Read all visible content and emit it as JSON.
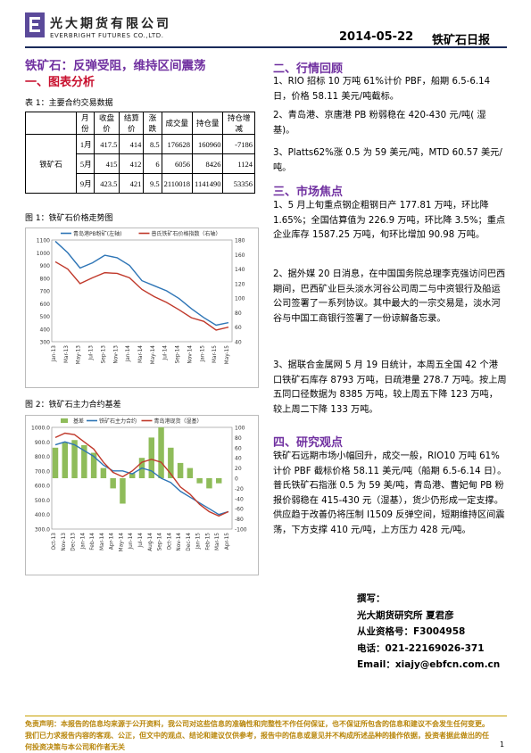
{
  "header": {
    "brand_cn": "光大期货有限公司",
    "brand_en": "EVERBRIGHT FUTURES CO.,LTD.",
    "date": "2014-05-22",
    "doc_type": "铁矿石日报"
  },
  "headline": "铁矿石：反弹受阻，维持区间震荡",
  "section1_title": "一、图表分析",
  "table": {
    "caption": "表 1：主要合约交易数据",
    "headers": [
      "",
      "月份",
      "收盘价",
      "结算价",
      "涨跌",
      "成交量",
      "持仓量",
      "持仓增减"
    ],
    "commodity": "铁矿石",
    "rows": [
      [
        "1月",
        "417.5",
        "414",
        "8.5",
        "176628",
        "160960",
        "-7186"
      ],
      [
        "5月",
        "415",
        "412",
        "6",
        "6056",
        "8426",
        "1124"
      ],
      [
        "9月",
        "423.5",
        "421",
        "9.5",
        "2110018",
        "1141490",
        "53356"
      ]
    ]
  },
  "fig1": {
    "caption": "图 1：铁矿石价格走势图",
    "legend": [
      "青岛港PB粉矿(左轴)",
      "普氏铁矿石价格指数（右轴）"
    ],
    "colors": {
      "pb": "#2e75b6",
      "platts": "#c0392b"
    }
  },
  "fig2": {
    "caption": "图 2：铁矿石主力合约基差",
    "legend": [
      "基差",
      "铁矿石主力合约",
      "青岛港现货（湿基）"
    ],
    "colors": {
      "basis": "#8fbc5a",
      "main": "#2e75b6",
      "spot": "#c0392b"
    }
  },
  "chart_data": [
    {
      "type": "line",
      "title": "",
      "x": [
        "Jan-13",
        "Mar-13",
        "May-13",
        "Jul-13",
        "Sep-13",
        "Nov-13",
        "Jan-14",
        "Mar-14",
        "May-14",
        "Jul-14",
        "Sep-14",
        "Nov-14",
        "Jan-15",
        "Mar-15",
        "May-15"
      ],
      "series": [
        {
          "name": "青岛港PB粉矿(左轴)",
          "axis": "left",
          "values": [
            1090,
            1000,
            880,
            920,
            980,
            960,
            900,
            780,
            740,
            700,
            640,
            560,
            490,
            430,
            450
          ]
        },
        {
          "name": "普氏铁矿石价格指数（右轴）",
          "axis": "right",
          "values": [
            150,
            140,
            120,
            128,
            135,
            134,
            128,
            112,
            102,
            94,
            84,
            73,
            68,
            56,
            60
          ]
        }
      ],
      "yleft": [
        300,
        1100
      ],
      "yright": [
        40,
        180
      ],
      "yleft_ticks": [
        300,
        400,
        500,
        600,
        700,
        800,
        900,
        1000,
        1100
      ],
      "yright_ticks": [
        40,
        60,
        80,
        100,
        120,
        140,
        160,
        180
      ],
      "grid": false,
      "legend": "top"
    },
    {
      "type": "bar",
      "title": "",
      "x": [
        "Oct-13",
        "Nov-13",
        "Dec-13",
        "Jan-14",
        "Feb-14",
        "Mar-14",
        "Apr-14",
        "May-14",
        "Jun-14",
        "Jul-14",
        "Aug-14",
        "Sep-14",
        "Oct-14",
        "Nov-14",
        "Dec-14",
        "Jan-15",
        "Feb-15",
        "Mar-15",
        "Apr-15"
      ],
      "series": [
        {
          "name": "基差",
          "axis": "right",
          "kind": "bar",
          "values": [
            60,
            70,
            75,
            65,
            50,
            20,
            -20,
            -50,
            10,
            40,
            80,
            100,
            60,
            30,
            20,
            -10,
            -20,
            -10,
            0
          ]
        },
        {
          "name": "铁矿石主力合约",
          "axis": "left",
          "kind": "line",
          "values": [
            880,
            900,
            880,
            840,
            800,
            740,
            700,
            700,
            680,
            720,
            700,
            650,
            620,
            560,
            520,
            480,
            440,
            400,
            420
          ]
        },
        {
          "name": "青岛港现货（湿基）",
          "axis": "left",
          "kind": "line",
          "values": [
            930,
            960,
            950,
            900,
            850,
            760,
            690,
            660,
            700,
            760,
            780,
            760,
            680,
            590,
            540,
            470,
            420,
            390,
            420
          ]
        }
      ],
      "yleft": [
        300,
        1000
      ],
      "yright": [
        -100,
        100
      ],
      "yleft_ticks": [
        "300.0",
        "400.0",
        "500.0",
        "600.0",
        "700.0",
        "800.0",
        "900.0",
        "1000.0"
      ],
      "yright_ticks": [
        -100,
        -80,
        -60,
        -40,
        -20,
        0,
        20,
        40,
        60,
        80,
        100
      ],
      "grid": false,
      "legend": "top"
    }
  ],
  "right": {
    "sec2_title": "二、行情回顾",
    "review": [
      "1、RIO 招标 10 万吨 61%计价 PBF，船期 6.5-6.14 日，价格 58.11 美元/吨截标。",
      "2、青岛港、京唐港 PB 粉弱稳在 420-430 元/吨( 湿基)。",
      "3、Platts62%涨 0.5 为 59 美元/吨，MTD 60.57 美元/吨。"
    ],
    "sec3_title": "三、市场焦点",
    "focus": [
      "1、5 月上旬重点钢企粗钢日产 177.81 万吨，环比降 1.65%；全国估算值为 226.9 万吨，环比降 3.5%；重点企业库存 1587.25 万吨，旬环比增加 90.98 万吨。",
      "2、据外媒 20 日消息，在中国国务院总理李克强访问巴西期间，巴西矿业巨头淡水河谷公司周二与中资银行及船运公司签署了一系列协议。其中最大的一宗交易是，淡水河谷与中国工商银行签署了一份谅解备忘录。",
      "3、据联合金属网 5 月 19 日统计，本周五全国 42 个港口铁矿石库存 8793 万吨，日疏港量 278.7 万吨。按上周五同口径数据为 8385 万吨，较上周五下降 123 万吨，较上周二下降 133 万吨。"
    ],
    "sec4_title": "四、研究观点",
    "view": "铁矿石远期市场小幅回升，成交一般，RIO10 万吨 61%计价 PBF 截标价格 58.11 美元/吨（船期 6.5-6.14 日）。普氏铁矿石指涨 0.5 为 59 美/吨，青岛港、曹妃甸 PB 粉报价弱稳在 415-430 元（湿基），货少仍形成一定支撑。供应趋于改善仍将压制 I1509 反弹空间，短期维持区间震荡，下方支撑 410 元/吨，上方压力 428 元/吨。"
  },
  "sign": {
    "label": "撰写：",
    "author": "光大期货研究所  夏君彦",
    "license": "从业资格号：F3004958",
    "phone": "电话：021-22169026-371",
    "email": "Email：xiajy@ebfcn.com.cn"
  },
  "footer": {
    "disclaimer": "免责声明：本报告的信息均来源于公开资料，我公司对这些信息的准确性和完整性不作任何保证，也不保证所包含的信息和建议不会发生任何变更。我们已力求报告内容的客观、公正，但文中的观点、结论和建议仅供参考，报告中的信息或意见并不构成所述品种的操作依据，投资者据此做出的任何投资决策与本公司和作者无关",
    "page": "1"
  }
}
